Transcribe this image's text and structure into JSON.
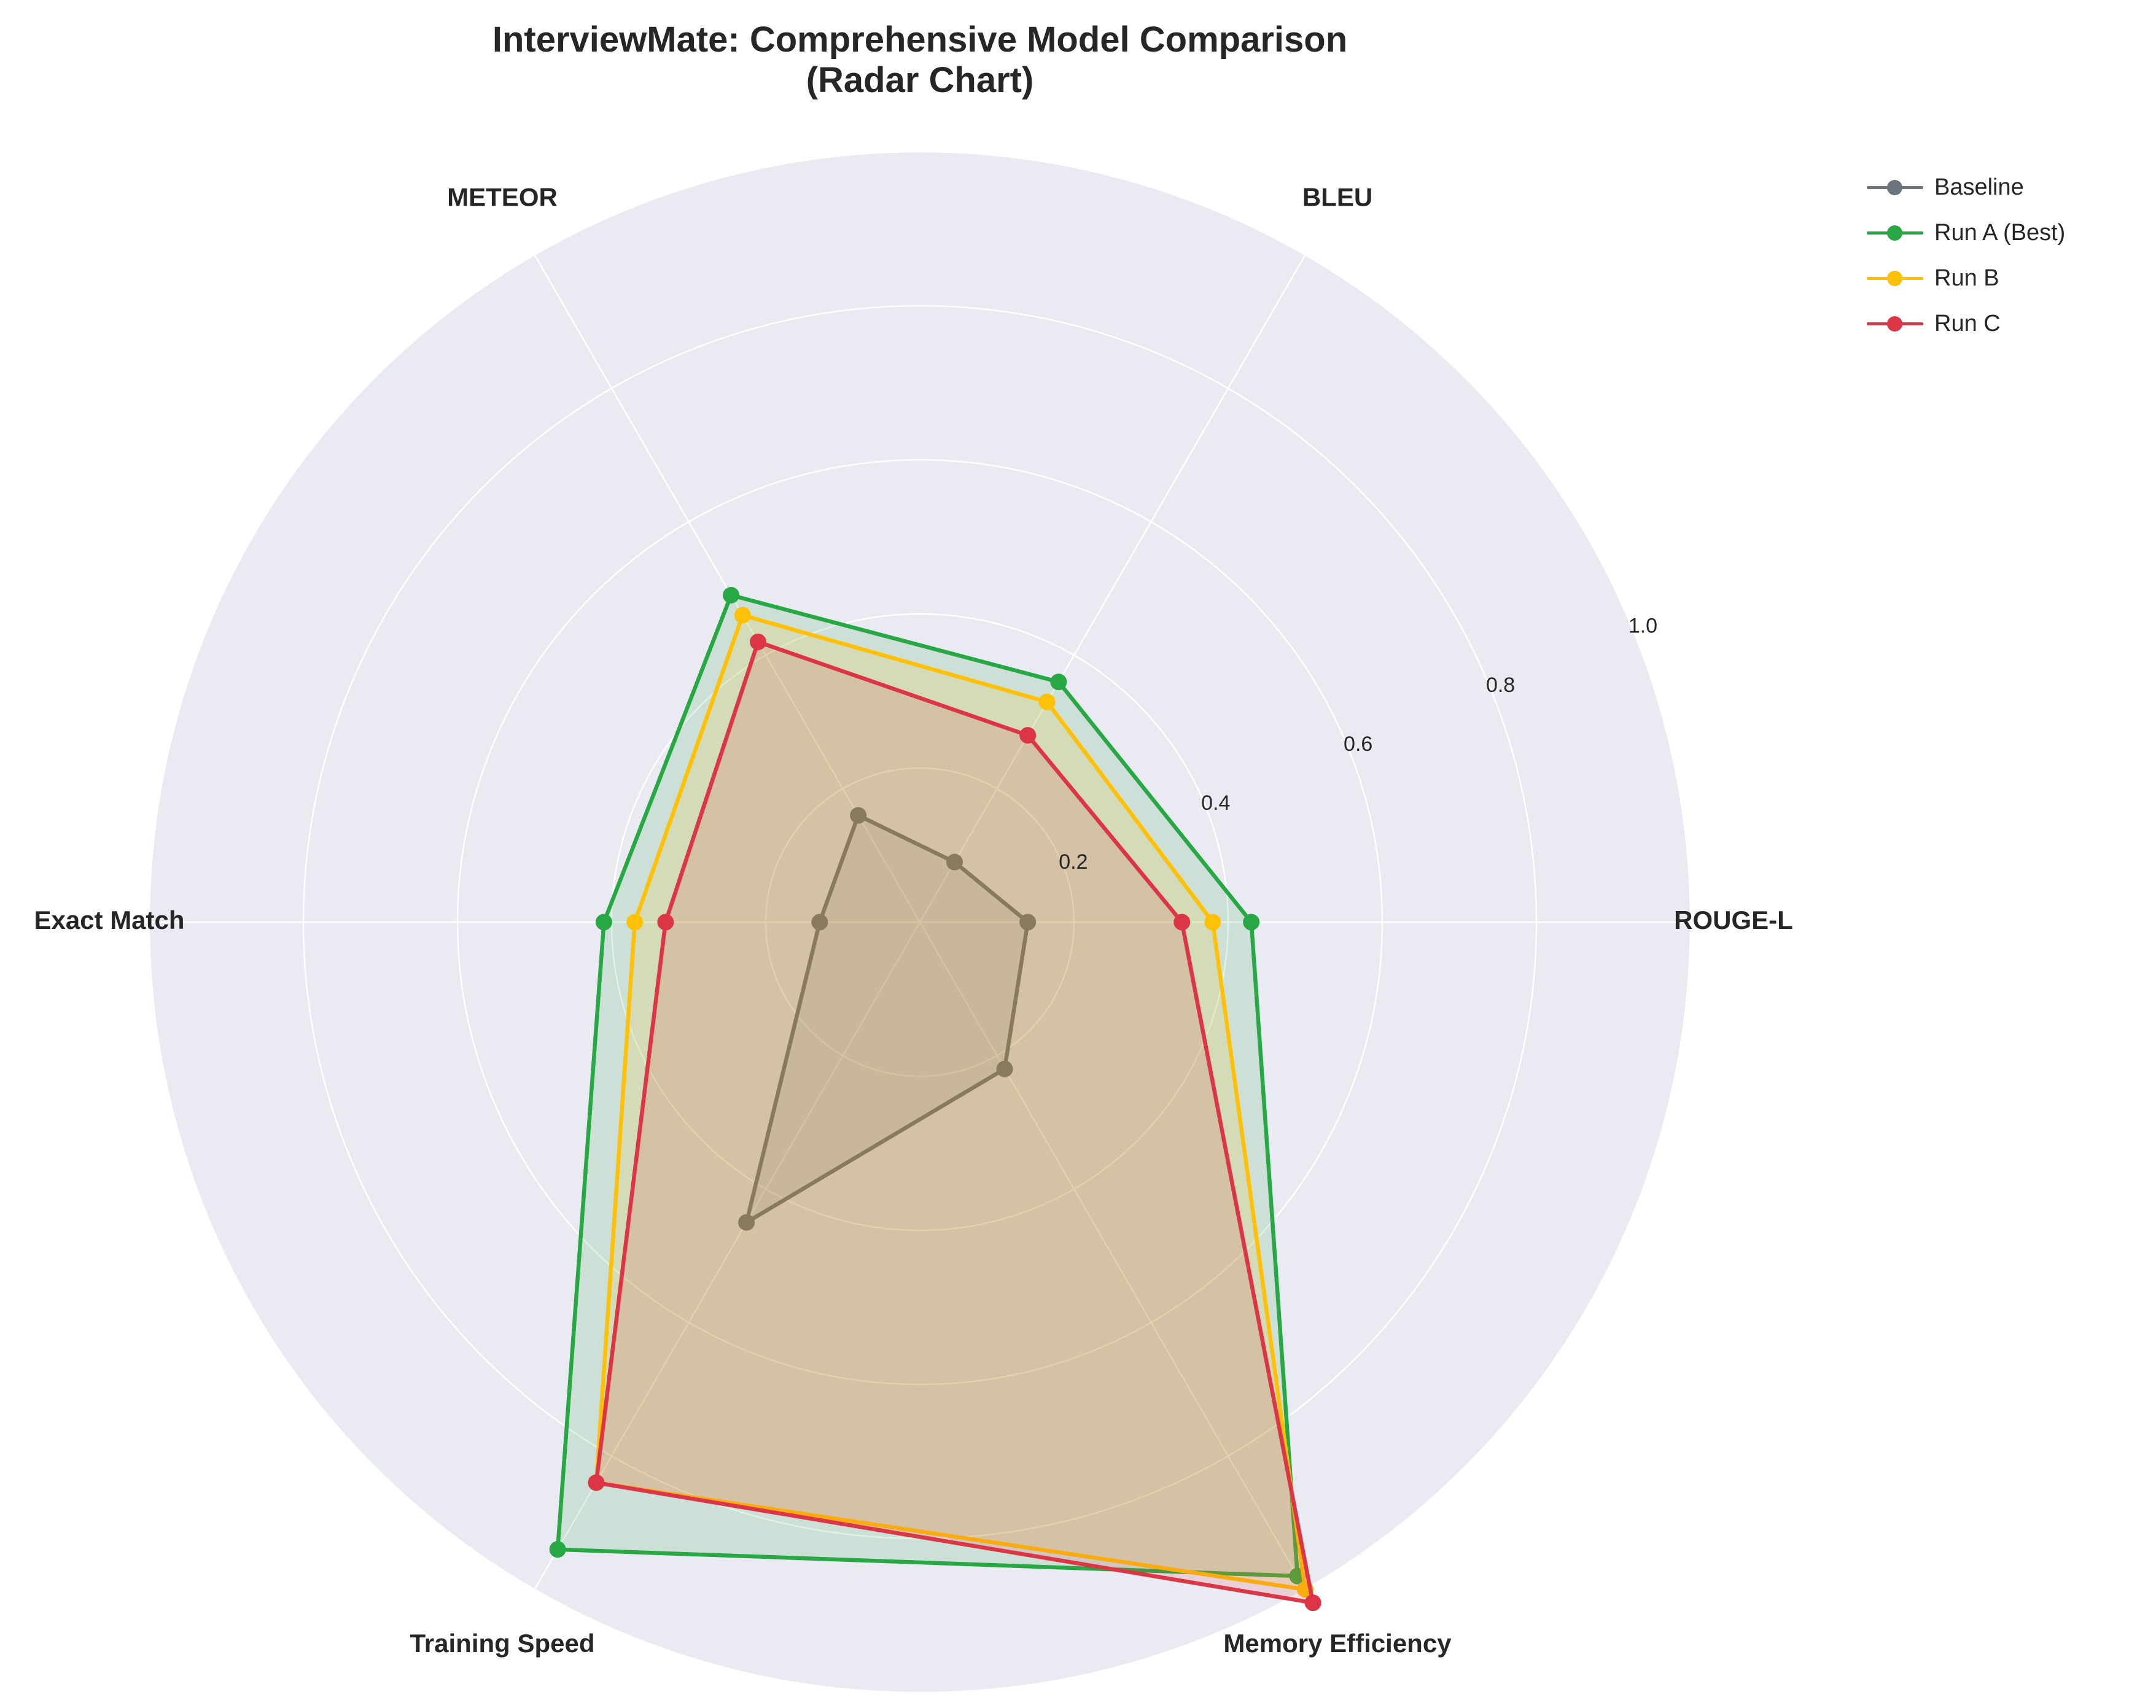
{
  "title_lines": [
    "InterviewMate: Comprehensive Model Comparison",
    "(Radar Chart)"
  ],
  "chart_data": {
    "type": "radar",
    "title": "InterviewMate: Comprehensive Model Comparison\n(Radar Chart)",
    "categories": [
      "ROUGE-L",
      "BLEU",
      "METEOR",
      "Exact Match",
      "Training Speed",
      "Memory Efficiency"
    ],
    "rlim": [
      0,
      1.0
    ],
    "rticks": [
      "0.2",
      "0.4",
      "0.6",
      "0.8",
      "1.0"
    ],
    "grid": true,
    "legend_position": "top-right, outside plot",
    "series": [
      {
        "name": "Baseline",
        "color": "#6c757d",
        "values": [
          0.14,
          0.09,
          0.16,
          0.13,
          0.45,
          0.22
        ]
      },
      {
        "name": "Run A (Best)",
        "color": "#28a745",
        "values": [
          0.43,
          0.36,
          0.49,
          0.41,
          0.94,
          0.98
        ]
      },
      {
        "name": "Run B",
        "color": "#ffc107",
        "values": [
          0.38,
          0.33,
          0.46,
          0.37,
          0.84,
          1.0
        ]
      },
      {
        "name": "Run C",
        "color": "#dc3545",
        "values": [
          0.34,
          0.28,
          0.42,
          0.33,
          0.84,
          1.02
        ]
      }
    ],
    "axes_background": "#eaeaf2",
    "grid_color": "#ffffff"
  }
}
